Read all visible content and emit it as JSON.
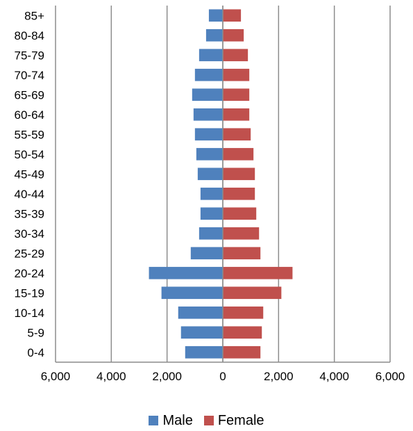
{
  "chart_data": {
    "type": "bar",
    "orientation": "horizontal",
    "subtype": "population-pyramid",
    "title": "",
    "xlabel": "",
    "ylabel": "",
    "categories": [
      "0-4",
      "5-9",
      "10-14",
      "15-19",
      "20-24",
      "25-29",
      "30-34",
      "35-39",
      "40-44",
      "45-49",
      "50-54",
      "55-59",
      "60-64",
      "65-69",
      "70-74",
      "75-79",
      "80-84",
      "85+"
    ],
    "series": [
      {
        "name": "Male",
        "color": "#4F81BD",
        "values": [
          1350,
          1500,
          1600,
          2200,
          2650,
          1150,
          850,
          800,
          800,
          900,
          950,
          1000,
          1050,
          1100,
          1000,
          850,
          600,
          500
        ]
      },
      {
        "name": "Female",
        "color": "#C0504D",
        "values": [
          1350,
          1400,
          1450,
          2100,
          2500,
          1350,
          1300,
          1200,
          1150,
          1150,
          1100,
          1000,
          950,
          950,
          950,
          900,
          750,
          650
        ]
      }
    ],
    "xlim": [
      -6000,
      6000
    ],
    "x_ticks": [
      -6000,
      -4000,
      -2000,
      0,
      2000,
      4000,
      6000
    ],
    "x_tick_labels": [
      "6,000",
      "4,000",
      "2,000",
      "0",
      "2,000",
      "4,000",
      "6,000"
    ],
    "grid": "vertical",
    "legend": "bottom"
  }
}
